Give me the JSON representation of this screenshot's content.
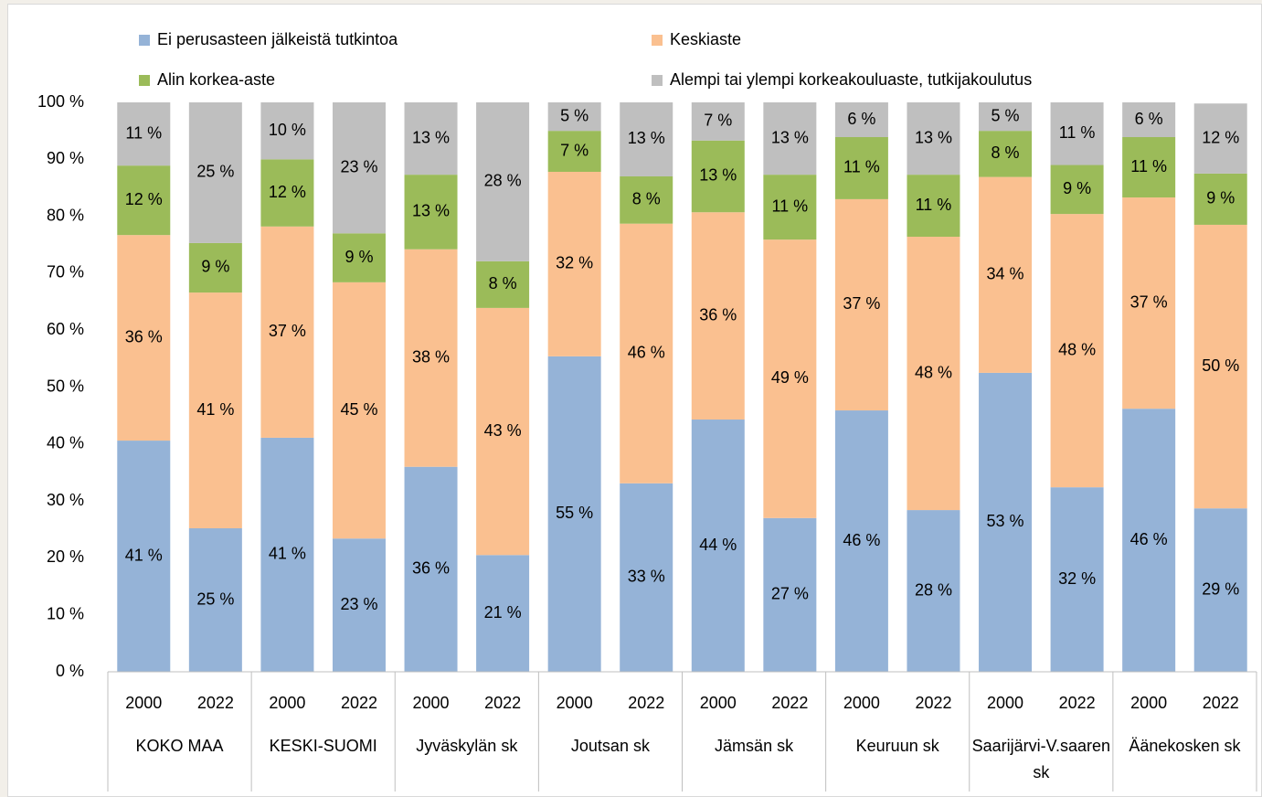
{
  "chart_data": {
    "type": "stacked_bar",
    "categories": [
      "2000",
      "2022",
      "2000",
      "2022",
      "2000",
      "2022",
      "2000",
      "2022",
      "2000",
      "2022",
      "2000",
      "2022",
      "2000",
      "2022",
      "2000",
      "2022"
    ],
    "groups": [
      "KOKO MAA",
      "KESKI-SUOMI",
      "Jyväskylän sk",
      "Joutsan sk",
      "Jämsän sk",
      "Keuruun sk",
      "Saarijärvi-V.saaren sk",
      "Äänekosken sk"
    ],
    "series": [
      {
        "name": "Ei perusasteen jälkeistä tutkintoa",
        "color": "#95b3d7",
        "values": [
          40.6,
          25.2,
          41.1,
          23.4,
          36.0,
          20.5,
          55.4,
          33.1,
          44.3,
          27.0,
          45.9,
          28.4,
          52.5,
          32.4,
          46.2,
          28.7
        ],
        "value_labels": [
          "41 %",
          "25 %",
          "41 %",
          "23 %",
          "36 %",
          "21 %",
          "55 %",
          "33 %",
          "44 %",
          "27 %",
          "46 %",
          "28 %",
          "53 %",
          "32 %",
          "46 %",
          "29 %"
        ]
      },
      {
        "name": "Keskiaste",
        "color": "#fac090",
        "values": [
          36.1,
          41.4,
          37.1,
          45.0,
          38.2,
          43.4,
          32.4,
          45.6,
          36.4,
          48.9,
          37.1,
          48.0,
          34.4,
          48.0,
          37.1,
          49.8
        ],
        "value_labels": [
          "36 %",
          "41 %",
          "37 %",
          "45 %",
          "38 %",
          "43 %",
          "32 %",
          "46 %",
          "36 %",
          "49 %",
          "37 %",
          "48 %",
          "34 %",
          "48 %",
          "37 %",
          "50 %"
        ]
      },
      {
        "name": "Alin korkea-aste",
        "color": "#9bbb59",
        "values": [
          12.2,
          8.7,
          11.8,
          8.6,
          13.1,
          8.2,
          7.2,
          8.3,
          12.6,
          11.4,
          10.9,
          10.9,
          8.1,
          8.6,
          10.6,
          9.0
        ],
        "value_labels": [
          "12 %",
          "9 %",
          "12 %",
          "9 %",
          "13 %",
          "8 %",
          "7 %",
          "8 %",
          "13 %",
          "11 %",
          "11 %",
          "11 %",
          "8 %",
          "9 %",
          "11 %",
          "9 %"
        ]
      },
      {
        "name": "Alempi tai ylempi korkeakouluaste, tutkijakoulutus",
        "color": "#bfbfbf",
        "values": [
          11.1,
          24.7,
          10.0,
          23.0,
          12.7,
          27.9,
          5.0,
          13.0,
          6.7,
          12.7,
          6.1,
          12.7,
          5.0,
          11.0,
          6.1,
          12.3
        ],
        "value_labels": [
          "11 %",
          "25 %",
          "10 %",
          "23 %",
          "13 %",
          "28 %",
          "5 %",
          "13 %",
          "7 %",
          "13 %",
          "6 %",
          "13 %",
          "5 %",
          "11 %",
          "6 %",
          "12 %"
        ]
      }
    ],
    "ylim": [
      0,
      100
    ],
    "yticks": [
      {
        "value": 0,
        "label": "0 %"
      },
      {
        "value": 10,
        "label": "10 %"
      },
      {
        "value": 20,
        "label": "20 %"
      },
      {
        "value": 30,
        "label": "30 %"
      },
      {
        "value": 40,
        "label": "40 %"
      },
      {
        "value": 50,
        "label": "50 %"
      },
      {
        "value": 60,
        "label": "60 %"
      },
      {
        "value": 70,
        "label": "70 %"
      },
      {
        "value": 80,
        "label": "80 %"
      },
      {
        "value": 90,
        "label": "90 %"
      },
      {
        "value": 100,
        "label": "100 %"
      }
    ],
    "grid": false,
    "legend": "top"
  }
}
